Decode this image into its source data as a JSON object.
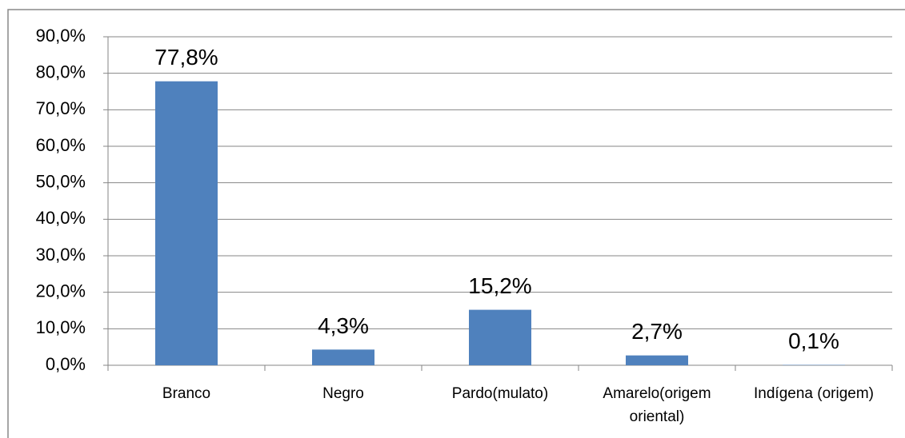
{
  "chart_data": {
    "type": "bar",
    "categories": [
      "Branco",
      "Negro",
      "Pardo(mulato)",
      "Amarelo(origem oriental)",
      "Indígena (origem)"
    ],
    "values": [
      77.8,
      4.3,
      15.2,
      2.7,
      0.1
    ],
    "value_labels": [
      "77,8%",
      "4,3%",
      "15,2%",
      "2,7%",
      "0,1%"
    ],
    "color": "#4f81bd",
    "ylim": [
      0,
      90
    ],
    "yticks": [
      {
        "value": 0,
        "label": "0,0%"
      },
      {
        "value": 10,
        "label": "10,0%"
      },
      {
        "value": 20,
        "label": "20,0%"
      },
      {
        "value": 30,
        "label": "30,0%"
      },
      {
        "value": 40,
        "label": "40,0%"
      },
      {
        "value": 50,
        "label": "50,0%"
      },
      {
        "value": 60,
        "label": "60,0%"
      },
      {
        "value": 70,
        "label": "70,0%"
      },
      {
        "value": 80,
        "label": "80,0%"
      },
      {
        "value": 90,
        "label": "90,0%"
      }
    ],
    "grid": true
  }
}
